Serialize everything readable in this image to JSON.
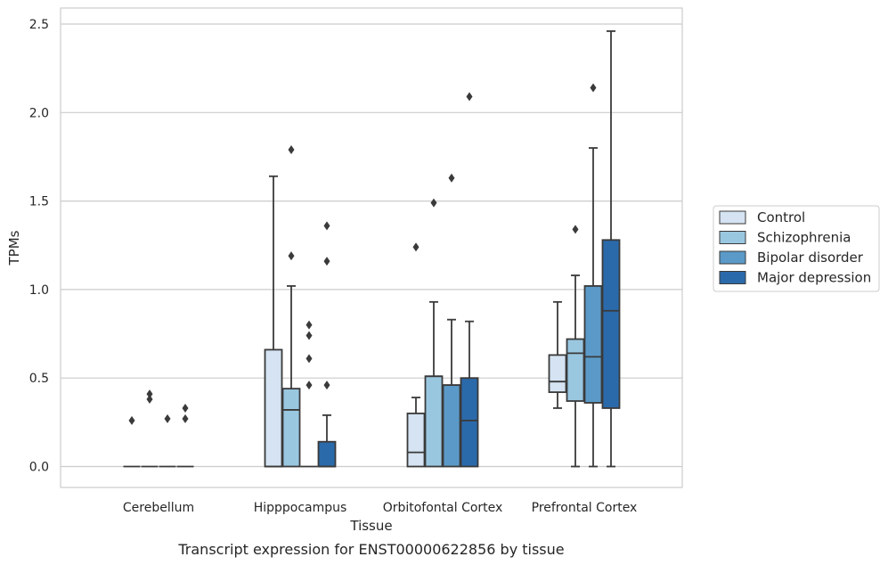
{
  "caption": "Transcript expression for ENST00000622856 by tissue",
  "chart_data": {
    "type": "box",
    "xlabel": "Tissue",
    "ylabel": "TPMs",
    "ylim": [
      -0.12,
      2.59
    ],
    "yticks": [
      "0.0",
      "0.5",
      "1.0",
      "1.5",
      "2.0",
      "2.5"
    ],
    "ytick_values": [
      0,
      0.5,
      1.0,
      1.5,
      2.0,
      2.5
    ],
    "grid": "horizontal",
    "legend_position": "right",
    "categories": [
      "Cerebellum",
      "Hipppocampus",
      "Orbitofontal Cortex",
      "Prefrontal Cortex"
    ],
    "series": [
      {
        "name": "Control",
        "color": "#d5e3f2",
        "boxes": [
          {
            "q1": 0,
            "median": 0,
            "q3": 0,
            "whisker_low": 0,
            "whisker_high": 0,
            "outliers": [
              0.26
            ]
          },
          {
            "q1": 0,
            "median": 0,
            "q3": 0.66,
            "whisker_low": 0,
            "whisker_high": 1.64,
            "outliers": []
          },
          {
            "q1": 0,
            "median": 0.08,
            "q3": 0.3,
            "whisker_low": 0,
            "whisker_high": 0.39,
            "outliers": [
              1.24
            ]
          },
          {
            "q1": 0.42,
            "median": 0.48,
            "q3": 0.63,
            "whisker_low": 0.33,
            "whisker_high": 0.93,
            "outliers": []
          }
        ]
      },
      {
        "name": "Schizophrenia",
        "color": "#9ac7e0",
        "boxes": [
          {
            "q1": 0,
            "median": 0,
            "q3": 0,
            "whisker_low": 0,
            "whisker_high": 0,
            "outliers": [
              0.38,
              0.41
            ]
          },
          {
            "q1": 0,
            "median": 0.32,
            "q3": 0.44,
            "whisker_low": 0,
            "whisker_high": 1.02,
            "outliers": [
              1.19,
              1.79
            ]
          },
          {
            "q1": 0,
            "median": 0.51,
            "q3": 0.51,
            "whisker_low": 0,
            "whisker_high": 0.93,
            "outliers": [
              1.49
            ]
          },
          {
            "q1": 0.37,
            "median": 0.64,
            "q3": 0.72,
            "whisker_low": 0,
            "whisker_high": 1.08,
            "outliers": [
              1.34
            ]
          }
        ]
      },
      {
        "name": "Bipolar disorder",
        "color": "#5b9ac8",
        "boxes": [
          {
            "q1": 0,
            "median": 0,
            "q3": 0,
            "whisker_low": 0,
            "whisker_high": 0,
            "outliers": [
              0.27
            ]
          },
          {
            "q1": 0,
            "median": 0,
            "q3": 0,
            "whisker_low": 0,
            "whisker_high": 0,
            "outliers": [
              0.46,
              0.61,
              0.74,
              0.8
            ]
          },
          {
            "q1": 0,
            "median": 0.46,
            "q3": 0.46,
            "whisker_low": 0,
            "whisker_high": 0.83,
            "outliers": [
              1.63
            ]
          },
          {
            "q1": 0.36,
            "median": 0.62,
            "q3": 1.02,
            "whisker_low": 0,
            "whisker_high": 1.8,
            "outliers": [
              2.14
            ]
          }
        ]
      },
      {
        "name": "Major depression",
        "color": "#2b6aaa",
        "boxes": [
          {
            "q1": 0,
            "median": 0,
            "q3": 0,
            "whisker_low": 0,
            "whisker_high": 0,
            "outliers": [
              0.27,
              0.33
            ]
          },
          {
            "q1": 0,
            "median": 0,
            "q3": 0.14,
            "whisker_low": 0,
            "whisker_high": 0.29,
            "outliers": [
              0.46,
              1.16,
              1.36
            ]
          },
          {
            "q1": 0,
            "median": 0.26,
            "q3": 0.5,
            "whisker_low": 0,
            "whisker_high": 0.82,
            "outliers": [
              2.09
            ]
          },
          {
            "q1": 0.33,
            "median": 0.88,
            "q3": 1.28,
            "whisker_low": 0,
            "whisker_high": 2.46,
            "outliers": []
          }
        ]
      }
    ]
  }
}
